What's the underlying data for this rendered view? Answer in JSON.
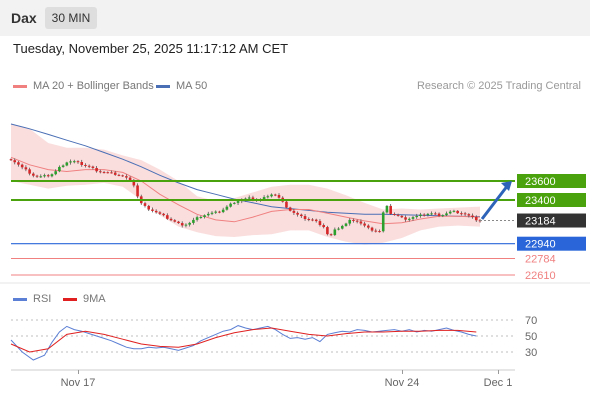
{
  "header": {
    "instrument": "Dax",
    "timeframe": "30 MIN"
  },
  "datetime": "Tuesday, November 25, 2025 11:17:12 AM CET",
  "legend": {
    "ma20": "MA 20 + Bollinger Bands",
    "ma50": "MA 50"
  },
  "source": "Research © 2025 Trading Central",
  "colors": {
    "up": "#2ca02c",
    "down": "#d62728",
    "ma20": "#f08080",
    "ma50": "#4a6fb5",
    "bands": "#f9d6d6",
    "resistance": "#4aa20c",
    "support": "#2a66d9",
    "pivot_support": "#f08080",
    "current": "#333333",
    "arrow": "#2d63b8",
    "rsi": "#5b7fd4",
    "rsi_ma": "#e02020"
  },
  "rsi_legend": {
    "rsi": "RSI",
    "ma": "9MA"
  },
  "chart_data": {
    "type": "candlestick",
    "price_levels": [
      {
        "value": 23600,
        "label": "23600",
        "kind": "resistance"
      },
      {
        "value": 23400,
        "label": "23400",
        "kind": "resistance"
      },
      {
        "value": 23184,
        "label": "23184",
        "kind": "current"
      },
      {
        "value": 22940,
        "label": "22940",
        "kind": "support"
      },
      {
        "value": 22784,
        "label": "22784",
        "kind": "support-minor"
      },
      {
        "value": 22610,
        "label": "22610",
        "kind": "support-minor"
      }
    ],
    "x_ticks": [
      "Nov 17",
      "Nov 24",
      "Dec 1"
    ],
    "rsi_ticks": [
      70,
      50,
      30
    ],
    "close_path": [
      [
        0,
        23830
      ],
      [
        3,
        23790
      ],
      [
        6,
        23740
      ],
      [
        9,
        23700
      ],
      [
        12,
        23660
      ],
      [
        15,
        23640
      ],
      [
        18,
        23650
      ],
      [
        21,
        23660
      ],
      [
        24,
        23700
      ],
      [
        27,
        23760
      ],
      [
        30,
        23800
      ],
      [
        33,
        23810
      ],
      [
        36,
        23790
      ],
      [
        39,
        23770
      ],
      [
        42,
        23750
      ],
      [
        45,
        23720
      ],
      [
        48,
        23700
      ],
      [
        51,
        23690
      ],
      [
        54,
        23680
      ],
      [
        57,
        23670
      ],
      [
        60,
        23650
      ],
      [
        63,
        23620
      ],
      [
        66,
        23560
      ],
      [
        69,
        23380
      ],
      [
        72,
        23330
      ],
      [
        75,
        23300
      ],
      [
        78,
        23270
      ],
      [
        81,
        23240
      ],
      [
        84,
        23210
      ],
      [
        87,
        23180
      ],
      [
        90,
        23150
      ],
      [
        93,
        23140
      ],
      [
        96,
        23160
      ],
      [
        99,
        23200
      ],
      [
        102,
        23230
      ],
      [
        105,
        23250
      ],
      [
        108,
        23260
      ],
      [
        111,
        23270
      ],
      [
        114,
        23300
      ],
      [
        117,
        23340
      ],
      [
        120,
        23380
      ],
      [
        123,
        23400
      ],
      [
        126,
        23410
      ],
      [
        129,
        23420
      ],
      [
        132,
        23400
      ],
      [
        135,
        23410
      ],
      [
        138,
        23450
      ],
      [
        141,
        23470
      ],
      [
        144,
        23420
      ],
      [
        147,
        23350
      ],
      [
        150,
        23290
      ],
      [
        153,
        23250
      ],
      [
        156,
        23220
      ],
      [
        159,
        23200
      ],
      [
        162,
        23190
      ],
      [
        165,
        23160
      ],
      [
        168,
        23120
      ],
      [
        171,
        23000
      ],
      [
        174,
        23080
      ],
      [
        177,
        23120
      ],
      [
        180,
        23150
      ],
      [
        183,
        23200
      ],
      [
        186,
        23180
      ],
      [
        189,
        23140
      ],
      [
        192,
        23100
      ],
      [
        195,
        23080
      ],
      [
        198,
        23070
      ],
      [
        201,
        23360
      ],
      [
        204,
        23260
      ],
      [
        207,
        23240
      ],
      [
        210,
        23210
      ],
      [
        213,
        23200
      ],
      [
        216,
        23220
      ],
      [
        219,
        23230
      ],
      [
        222,
        23250
      ],
      [
        225,
        23260
      ],
      [
        228,
        23250
      ],
      [
        231,
        23240
      ],
      [
        234,
        23260
      ],
      [
        237,
        23280
      ],
      [
        240,
        23270
      ],
      [
        243,
        23260
      ],
      [
        246,
        23230
      ],
      [
        249,
        23200
      ],
      [
        252,
        23180
      ]
    ],
    "ma20_path": [
      [
        0,
        23850
      ],
      [
        10,
        23770
      ],
      [
        20,
        23720
      ],
      [
        30,
        23700
      ],
      [
        40,
        23720
      ],
      [
        50,
        23720
      ],
      [
        60,
        23690
      ],
      [
        70,
        23600
      ],
      [
        80,
        23460
      ],
      [
        90,
        23350
      ],
      [
        100,
        23250
      ],
      [
        110,
        23190
      ],
      [
        120,
        23170
      ],
      [
        130,
        23220
      ],
      [
        140,
        23280
      ],
      [
        150,
        23300
      ],
      [
        160,
        23300
      ],
      [
        170,
        23260
      ],
      [
        180,
        23220
      ],
      [
        190,
        23180
      ],
      [
        200,
        23150
      ],
      [
        210,
        23160
      ],
      [
        220,
        23200
      ],
      [
        230,
        23230
      ],
      [
        240,
        23230
      ],
      [
        252,
        23220
      ]
    ],
    "ma50_path": [
      [
        0,
        24200
      ],
      [
        10,
        24150
      ],
      [
        20,
        24090
      ],
      [
        30,
        24030
      ],
      [
        40,
        23970
      ],
      [
        50,
        23900
      ],
      [
        60,
        23830
      ],
      [
        70,
        23750
      ],
      [
        80,
        23660
      ],
      [
        90,
        23580
      ],
      [
        100,
        23510
      ],
      [
        110,
        23460
      ],
      [
        120,
        23410
      ],
      [
        130,
        23370
      ],
      [
        140,
        23330
      ],
      [
        150,
        23310
      ],
      [
        160,
        23290
      ],
      [
        170,
        23270
      ],
      [
        180,
        23260
      ],
      [
        190,
        23250
      ],
      [
        200,
        23250
      ],
      [
        210,
        23245
      ],
      [
        220,
        23240
      ],
      [
        230,
        23235
      ],
      [
        240,
        23230
      ],
      [
        252,
        23225
      ]
    ],
    "band_upper_path": [
      [
        0,
        24200
      ],
      [
        10,
        24150
      ],
      [
        20,
        24000
      ],
      [
        30,
        23950
      ],
      [
        40,
        23950
      ],
      [
        50,
        23930
      ],
      [
        60,
        23870
      ],
      [
        70,
        23820
      ],
      [
        80,
        23720
      ],
      [
        90,
        23600
      ],
      [
        100,
        23440
      ],
      [
        110,
        23390
      ],
      [
        120,
        23420
      ],
      [
        130,
        23480
      ],
      [
        140,
        23540
      ],
      [
        150,
        23560
      ],
      [
        160,
        23560
      ],
      [
        170,
        23520
      ],
      [
        180,
        23450
      ],
      [
        190,
        23370
      ],
      [
        200,
        23300
      ],
      [
        210,
        23310
      ],
      [
        220,
        23300
      ],
      [
        230,
        23310
      ],
      [
        240,
        23320
      ],
      [
        252,
        23330
      ]
    ],
    "band_lower_path": [
      [
        0,
        23600
      ],
      [
        10,
        23560
      ],
      [
        20,
        23520
      ],
      [
        30,
        23550
      ],
      [
        40,
        23560
      ],
      [
        50,
        23580
      ],
      [
        60,
        23540
      ],
      [
        70,
        23400
      ],
      [
        80,
        23240
      ],
      [
        90,
        23120
      ],
      [
        100,
        23060
      ],
      [
        110,
        23020
      ],
      [
        120,
        23010
      ],
      [
        130,
        23030
      ],
      [
        140,
        23040
      ],
      [
        150,
        23080
      ],
      [
        160,
        23080
      ],
      [
        170,
        23010
      ],
      [
        180,
        22960
      ],
      [
        190,
        22930
      ],
      [
        200,
        22950
      ],
      [
        210,
        23000
      ],
      [
        220,
        23080
      ],
      [
        230,
        23120
      ],
      [
        240,
        23130
      ],
      [
        252,
        23120
      ]
    ],
    "rsi_path": [
      [
        0,
        45
      ],
      [
        6,
        30
      ],
      [
        12,
        20
      ],
      [
        18,
        26
      ],
      [
        22,
        42
      ],
      [
        26,
        55
      ],
      [
        30,
        62
      ],
      [
        34,
        58
      ],
      [
        38,
        56
      ],
      [
        42,
        53
      ],
      [
        46,
        50
      ],
      [
        50,
        47
      ],
      [
        54,
        44
      ],
      [
        58,
        40
      ],
      [
        62,
        36
      ],
      [
        66,
        34
      ],
      [
        70,
        34
      ],
      [
        74,
        36
      ],
      [
        78,
        35
      ],
      [
        82,
        36
      ],
      [
        86,
        34
      ],
      [
        90,
        32
      ],
      [
        94,
        35
      ],
      [
        98,
        38
      ],
      [
        102,
        44
      ],
      [
        106,
        48
      ],
      [
        110,
        52
      ],
      [
        114,
        56
      ],
      [
        118,
        58
      ],
      [
        122,
        63
      ],
      [
        126,
        60
      ],
      [
        130,
        58
      ],
      [
        134,
        60
      ],
      [
        138,
        62
      ],
      [
        142,
        58
      ],
      [
        146,
        52
      ],
      [
        150,
        47
      ],
      [
        154,
        48
      ],
      [
        158,
        46
      ],
      [
        162,
        48
      ],
      [
        166,
        43
      ],
      [
        170,
        52
      ],
      [
        174,
        54
      ],
      [
        178,
        56
      ],
      [
        182,
        55
      ],
      [
        186,
        58
      ],
      [
        190,
        57
      ],
      [
        194,
        55
      ],
      [
        198,
        56
      ],
      [
        202,
        57
      ],
      [
        206,
        58
      ],
      [
        210,
        56
      ],
      [
        214,
        58
      ],
      [
        218,
        55
      ],
      [
        222,
        57
      ],
      [
        226,
        56
      ],
      [
        230,
        58
      ],
      [
        234,
        60
      ],
      [
        238,
        57
      ],
      [
        242,
        55
      ],
      [
        246,
        52
      ],
      [
        250,
        50
      ]
    ],
    "rsi_ma_path": [
      [
        0,
        40
      ],
      [
        10,
        30
      ],
      [
        20,
        34
      ],
      [
        30,
        52
      ],
      [
        40,
        56
      ],
      [
        50,
        52
      ],
      [
        60,
        46
      ],
      [
        70,
        40
      ],
      [
        80,
        37
      ],
      [
        90,
        36
      ],
      [
        100,
        40
      ],
      [
        110,
        48
      ],
      [
        120,
        54
      ],
      [
        130,
        58
      ],
      [
        140,
        60
      ],
      [
        150,
        56
      ],
      [
        160,
        52
      ],
      [
        170,
        50
      ],
      [
        180,
        53
      ],
      [
        190,
        55
      ],
      [
        200,
        55
      ],
      [
        210,
        56
      ],
      [
        220,
        56
      ],
      [
        230,
        57
      ],
      [
        240,
        57
      ],
      [
        250,
        55
      ]
    ]
  }
}
